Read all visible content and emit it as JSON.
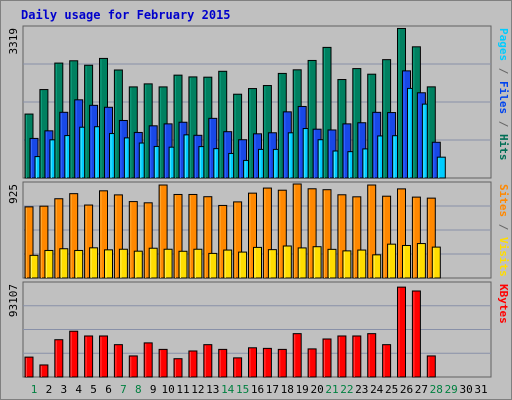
{
  "chart_data": {
    "type": "bar",
    "title": "Daily usage for February 2015",
    "categories": [
      "1",
      "2",
      "3",
      "4",
      "5",
      "6",
      "7",
      "8",
      "9",
      "10",
      "11",
      "12",
      "13",
      "14",
      "15",
      "16",
      "17",
      "18",
      "19",
      "20",
      "21",
      "22",
      "23",
      "24",
      "25",
      "26",
      "27",
      "28",
      "29",
      "30",
      "31"
    ],
    "weekend_days": [
      "1",
      "7",
      "8",
      "14",
      "15",
      "21",
      "22",
      "28",
      "29"
    ],
    "panels": [
      {
        "name": "hits-files-pages",
        "max_label": "3319",
        "ylim": [
          0,
          3319
        ],
        "right_label": "Pages / Files / Hits",
        "right_label_parts": [
          {
            "text": "Pages",
            "color": "#00ccff"
          },
          {
            "text": " / ",
            "color": "#666666"
          },
          {
            "text": "Files",
            "color": "#0044ee"
          },
          {
            "text": " / ",
            "color": "#666666"
          },
          {
            "text": "Hits",
            "color": "#006e55"
          }
        ],
        "series": [
          {
            "name": "Hits",
            "color": "#008060",
            "values": [
              1415,
              1957,
              2543,
              2594,
              2495,
              2646,
              2390,
              2016,
              2083,
              2016,
              2276,
              2237,
              2231,
              2361,
              1854,
              1979,
              2046,
              2314,
              2394,
              2601,
              2890,
              2179,
              2421,
              2297,
              2619,
              3309,
              2903,
              2017,
              0,
              0,
              0
            ]
          },
          {
            "name": "Files",
            "color": "#1848e8",
            "values": [
              876,
              1044,
              1454,
              1730,
              1608,
              1565,
              1273,
              1008,
              1155,
              1198,
              1234,
              945,
              1320,
              1025,
              847,
              978,
              1001,
              1464,
              1583,
              1080,
              1063,
              1198,
              1223,
              1453,
              1448,
              2371,
              1886,
              791,
              0,
              0,
              0
            ]
          },
          {
            "name": "Pages",
            "color": "#00ccff",
            "values": [
              474,
              845,
              939,
              1124,
              1135,
              984,
              888,
              774,
              698,
              682,
              955,
              695,
              650,
              543,
              389,
              633,
              633,
              1000,
              1095,
              847,
              598,
              583,
              644,
              931,
              936,
              1982,
              1635,
              461,
              0,
              0,
              0
            ]
          }
        ]
      },
      {
        "name": "visits-sites",
        "max_label": "925",
        "ylim": [
          0,
          925
        ],
        "right_label": "Sites / Visits",
        "right_label_parts": [
          {
            "text": "Sites",
            "color": "#ff8800"
          },
          {
            "text": " / ",
            "color": "#666666"
          },
          {
            "text": "Visits",
            "color": "#ffdd00"
          }
        ],
        "series": [
          {
            "name": "Sites",
            "color": "#ff8800",
            "values": [
              700,
              707,
              780,
              830,
              718,
              858,
              818,
              752,
              740,
              915,
              822,
              822,
              800,
              714,
              749,
              835,
              885,
              864,
              925,
              878,
              869,
              819,
              799,
              915,
              805,
              877,
              796,
              786,
              0,
              0,
              0
            ]
          },
          {
            "name": "Visits",
            "color": "#ffdd00",
            "values": [
              223,
              271,
              288,
              271,
              297,
              277,
              283,
              264,
              293,
              283,
              263,
              283,
              242,
              275,
              255,
              301,
              279,
              315,
              296,
              308,
              282,
              267,
              275,
              228,
              333,
              320,
              339,
              304,
              0,
              0,
              0
            ]
          }
        ]
      },
      {
        "name": "kbytes",
        "max_label": "93107",
        "ylim": [
          0,
          93107
        ],
        "right_label": "KBytes",
        "right_label_parts": [
          {
            "text": "KBytes",
            "color": "#ff0000"
          }
        ],
        "series": [
          {
            "name": "KBytes",
            "color": "#ff0000",
            "values": [
              19912,
              12070,
              37346,
              45829,
              41080,
              41080,
              32385,
              21098,
              34166,
              27645,
              18326,
              26063,
              32385,
              27645,
              19163,
              29263,
              28654,
              27645,
              43412,
              28143,
              38059,
              41080,
              41080,
              43412,
              32385,
              89973,
              86117,
              21098,
              0,
              0,
              0
            ]
          }
        ]
      }
    ]
  }
}
